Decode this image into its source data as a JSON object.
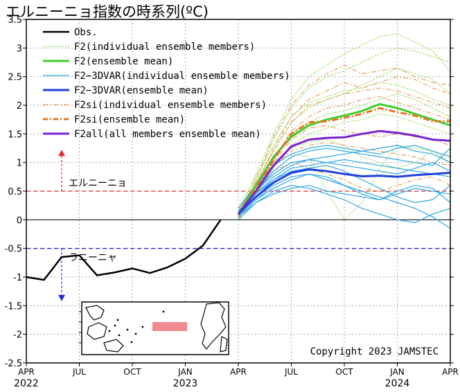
{
  "chart_data": {
    "type": "line",
    "title": "エルニーニョ指数の時系列(ºC)",
    "ylim": [
      -2.5,
      3.5
    ],
    "yticks": [
      3.5,
      3,
      2.5,
      2,
      1.5,
      1,
      0.5,
      0,
      -0.5,
      -1,
      -1.5,
      -2,
      -2.5
    ],
    "xlim": [
      0,
      24
    ],
    "x_ticks": [
      {
        "pos": 0,
        "month": "APR",
        "year": "2022"
      },
      {
        "pos": 3,
        "month": "JUL",
        "year": ""
      },
      {
        "pos": 6,
        "month": "OCT",
        "year": ""
      },
      {
        "pos": 9,
        "month": "JAN",
        "year": "2023"
      },
      {
        "pos": 12,
        "month": "APR",
        "year": ""
      },
      {
        "pos": 15,
        "month": "JUL",
        "year": ""
      },
      {
        "pos": 18,
        "month": "OCT",
        "year": ""
      },
      {
        "pos": 21,
        "month": "JAN",
        "year": "2024"
      },
      {
        "pos": 24,
        "month": "APR",
        "year": ""
      }
    ],
    "grid": true,
    "legend_position": "top-left",
    "thresholds": [
      {
        "value": 0.5,
        "label": "エルニーニョ",
        "color": "#e8262c",
        "arrow": "up"
      },
      {
        "value": -0.5,
        "label": "ラニーニャ",
        "color": "#2b2bd8",
        "arrow": "down"
      }
    ],
    "copyright": "Copyright 2023 JAMSTEC",
    "legend": [
      {
        "label": "Obs.",
        "color": "#000000",
        "style": "solid",
        "width": 2.5
      },
      {
        "label": "F2(individual ensemble members)",
        "color": "#8fd84a",
        "style": "dotted",
        "width": 1.2
      },
      {
        "label": "F2(ensemble mean)",
        "color": "#3ccf2a",
        "style": "solid",
        "width": 3
      },
      {
        "label": "F2−3DVAR(individual ensemble members)",
        "color": "#2ea6e8",
        "style": "solid",
        "width": 1.2
      },
      {
        "label": "F2−3DVAR(ensemble mean)",
        "color": "#1f3fdc",
        "style": "solid",
        "width": 3
      },
      {
        "label": "F2si(individual ensemble members)",
        "color": "#e8a05a",
        "style": "dashdot",
        "width": 1.2
      },
      {
        "label": "F2si(ensemble mean)",
        "color": "#e8731a",
        "style": "dashdot",
        "width": 3
      },
      {
        "label": "F2all(all members ensemble mean)",
        "color": "#7b1fd0",
        "style": "solid",
        "width": 3
      }
    ],
    "obs": {
      "name": "Obs.",
      "x": [
        0,
        1,
        2,
        3,
        4,
        5,
        6,
        7,
        8,
        9,
        10,
        11
      ],
      "y": [
        -1.0,
        -1.05,
        -0.65,
        -0.62,
        -0.97,
        -0.92,
        -0.85,
        -0.93,
        -0.83,
        -0.68,
        -0.45,
        0.0
      ]
    },
    "forecast_x": [
      12,
      13,
      14,
      15,
      16,
      17,
      18,
      19,
      20,
      21,
      22,
      23,
      24
    ],
    "means": [
      {
        "name": "F2(ensemble mean)",
        "color": "#3ccf2a",
        "y": [
          0.1,
          0.6,
          1.1,
          1.45,
          1.65,
          1.75,
          1.82,
          1.9,
          2.02,
          1.95,
          1.85,
          1.75,
          1.65
        ]
      },
      {
        "name": "F2si(ensemble mean)",
        "color": "#e8731a",
        "y": [
          0.08,
          0.55,
          1.05,
          1.5,
          1.7,
          1.72,
          1.78,
          1.85,
          1.95,
          1.88,
          1.82,
          1.72,
          1.72
        ]
      },
      {
        "name": "F2all(all members ensemble mean)",
        "color": "#7b1fd0",
        "y": [
          0.1,
          0.5,
          0.95,
          1.28,
          1.4,
          1.43,
          1.44,
          1.5,
          1.55,
          1.52,
          1.47,
          1.4,
          1.38
        ]
      },
      {
        "name": "F2−3DVAR(ensemble mean)",
        "color": "#1f3fdc",
        "y": [
          0.1,
          0.4,
          0.65,
          0.82,
          0.88,
          0.85,
          0.8,
          0.76,
          0.77,
          0.75,
          0.78,
          0.8,
          0.82
        ]
      }
    ],
    "members": {
      "F2": {
        "color": "#8fd84a",
        "y": [
          [
            0.1,
            0.8,
            1.5,
            2.1,
            2.5,
            2.7,
            2.9,
            3.05,
            3.2,
            3.25,
            3.1,
            2.95,
            2.6
          ],
          [
            0.05,
            0.7,
            1.4,
            1.95,
            2.3,
            2.5,
            2.6,
            2.75,
            2.9,
            3.0,
            2.95,
            2.85,
            2.75
          ],
          [
            0.15,
            0.65,
            1.2,
            1.7,
            1.95,
            2.1,
            2.2,
            2.35,
            2.5,
            2.65,
            2.55,
            2.45,
            2.2
          ],
          [
            0.0,
            0.55,
            1.1,
            1.5,
            1.7,
            1.85,
            1.9,
            2.0,
            2.1,
            2.2,
            2.1,
            1.95,
            1.8
          ],
          [
            0.1,
            0.45,
            0.9,
            1.3,
            1.5,
            1.6,
            1.7,
            1.75,
            1.85,
            1.8,
            1.7,
            1.6,
            1.5
          ],
          [
            0.05,
            0.5,
            0.95,
            1.15,
            1.1,
            0.5,
            0.0,
            0.3,
            0.9,
            1.3,
            1.25,
            1.2,
            1.1
          ],
          [
            0.1,
            0.6,
            1.0,
            1.25,
            1.35,
            1.4,
            1.3,
            1.1,
            1.0,
            0.9,
            1.0,
            1.2,
            1.0
          ],
          [
            0.2,
            0.75,
            1.3,
            1.8,
            2.05,
            2.15,
            2.25,
            2.3,
            2.4,
            2.35,
            2.25,
            2.1,
            2.0
          ]
        ]
      },
      "F2si": {
        "color": "#e8a05a",
        "y": [
          [
            0.1,
            0.7,
            1.45,
            2.0,
            2.35,
            2.55,
            2.7,
            2.55,
            2.6,
            2.65,
            2.5,
            2.4,
            2.35
          ],
          [
            0.05,
            0.6,
            1.25,
            1.8,
            2.1,
            2.25,
            2.4,
            2.3,
            2.4,
            2.5,
            2.45,
            2.3,
            2.2
          ],
          [
            0.0,
            0.5,
            1.05,
            1.55,
            1.8,
            1.95,
            2.0,
            2.1,
            2.15,
            2.05,
            1.95,
            1.85,
            1.75
          ],
          [
            0.15,
            0.65,
            1.2,
            1.7,
            2.0,
            2.1,
            2.2,
            2.25,
            2.3,
            2.25,
            2.15,
            2.05,
            1.95
          ],
          [
            0.05,
            0.5,
            0.95,
            1.2,
            1.3,
            1.35,
            1.3,
            1.25,
            1.2,
            1.15,
            1.1,
            1.0,
            0.95
          ],
          [
            0.1,
            0.55,
            1.0,
            1.4,
            1.6,
            1.65,
            1.55,
            1.5,
            1.45,
            1.5,
            1.45,
            1.4,
            1.3
          ],
          [
            0.1,
            0.45,
            0.85,
            1.0,
            0.9,
            0.8,
            0.7,
            0.55,
            0.5,
            0.6,
            0.7,
            0.75,
            0.6
          ]
        ]
      },
      "F2_3DVAR": {
        "color": "#2ea6e8",
        "y": [
          [
            0.1,
            0.45,
            0.75,
            0.95,
            1.05,
            1.1,
            1.15,
            1.2,
            1.25,
            1.3,
            1.2,
            1.15,
            1.0
          ],
          [
            0.05,
            0.35,
            0.6,
            0.75,
            0.8,
            0.7,
            0.6,
            0.5,
            0.4,
            0.3,
            0.2,
            0.05,
            -0.15
          ],
          [
            0.15,
            0.5,
            0.85,
            1.1,
            1.2,
            1.25,
            1.2,
            1.15,
            1.1,
            1.05,
            1.0,
            0.95,
            1.25
          ],
          [
            0.0,
            0.3,
            0.5,
            0.6,
            0.55,
            0.45,
            0.35,
            0.2,
            0.1,
            0.0,
            -0.05,
            0.1,
            0.2
          ],
          [
            0.1,
            0.4,
            0.7,
            0.9,
            0.95,
            1.0,
            1.05,
            1.0,
            0.95,
            0.9,
            0.85,
            0.8,
            0.75
          ],
          [
            0.05,
            0.35,
            0.55,
            0.7,
            0.8,
            0.75,
            0.6,
            0.45,
            0.35,
            0.5,
            0.6,
            0.55,
            0.3
          ],
          [
            0.2,
            0.6,
            0.95,
            1.15,
            1.25,
            1.3,
            1.25,
            1.2,
            1.15,
            1.25,
            1.3,
            1.2,
            1.1
          ],
          [
            0.1,
            0.45,
            0.7,
            0.85,
            0.9,
            0.95,
            0.85,
            0.7,
            0.55,
            0.4,
            0.3,
            0.35,
            0.6
          ],
          [
            0.05,
            0.3,
            0.45,
            0.55,
            0.6,
            0.5,
            0.45,
            0.4,
            0.35,
            0.45,
            0.55,
            0.5,
            0.45
          ],
          [
            0.15,
            0.5,
            0.8,
            1.0,
            1.05,
            1.0,
            0.95,
            0.9,
            0.85,
            0.8,
            0.9,
            1.0,
            0.85
          ]
        ]
      }
    }
  }
}
